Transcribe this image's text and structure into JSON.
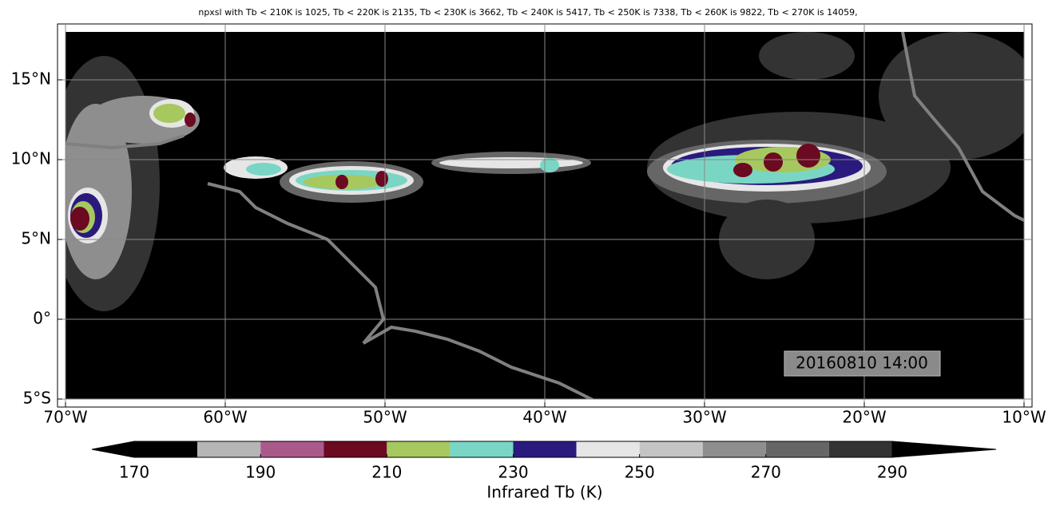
{
  "chart_data": {
    "type": "map",
    "title": "npxsl with Tb < 210K is 1025,  Tb < 220K is 2135,  Tb < 230K is 3662,  Tb < 240K is 5417,  Tb < 250K is 7338,  Tb < 260K is 9822,  Tb < 270K is 14059,",
    "xlim": [
      -70.5,
      -9.5
    ],
    "ylim": [
      -5.5,
      18.5
    ],
    "xticks": [
      {
        "value": -70,
        "label": "70°W"
      },
      {
        "value": -60,
        "label": "60°W"
      },
      {
        "value": -50,
        "label": "50°W"
      },
      {
        "value": -40,
        "label": "40°W"
      },
      {
        "value": -30,
        "label": "30°W"
      },
      {
        "value": -20,
        "label": "20°W"
      },
      {
        "value": -10,
        "label": "10°W"
      }
    ],
    "yticks": [
      {
        "value": -5,
        "label": "5°S"
      },
      {
        "value": 0,
        "label": "0°"
      },
      {
        "value": 5,
        "label": "5°N"
      },
      {
        "value": 10,
        "label": "10°N"
      },
      {
        "value": 15,
        "label": "15°N"
      }
    ],
    "grid": true,
    "annotation": "20160810 14:00",
    "colorbar": {
      "label": "Infrared Tb (K)",
      "boundaries": [
        170,
        180,
        190,
        200,
        210,
        220,
        230,
        240,
        250,
        260,
        270,
        280,
        290
      ],
      "colors": [
        "#000000",
        "#b5b5b5",
        "#aa5a8a",
        "#6b0a20",
        "#a6c85e",
        "#7ad6c4",
        "#2a1a7e",
        "#e6e6e6",
        "#c4c4c4",
        "#8e8e8e",
        "#666666",
        "#333333"
      ],
      "under_color": "#000000",
      "over_color": "#000000",
      "ticks": [
        170,
        190,
        210,
        230,
        250,
        270,
        290
      ]
    }
  }
}
